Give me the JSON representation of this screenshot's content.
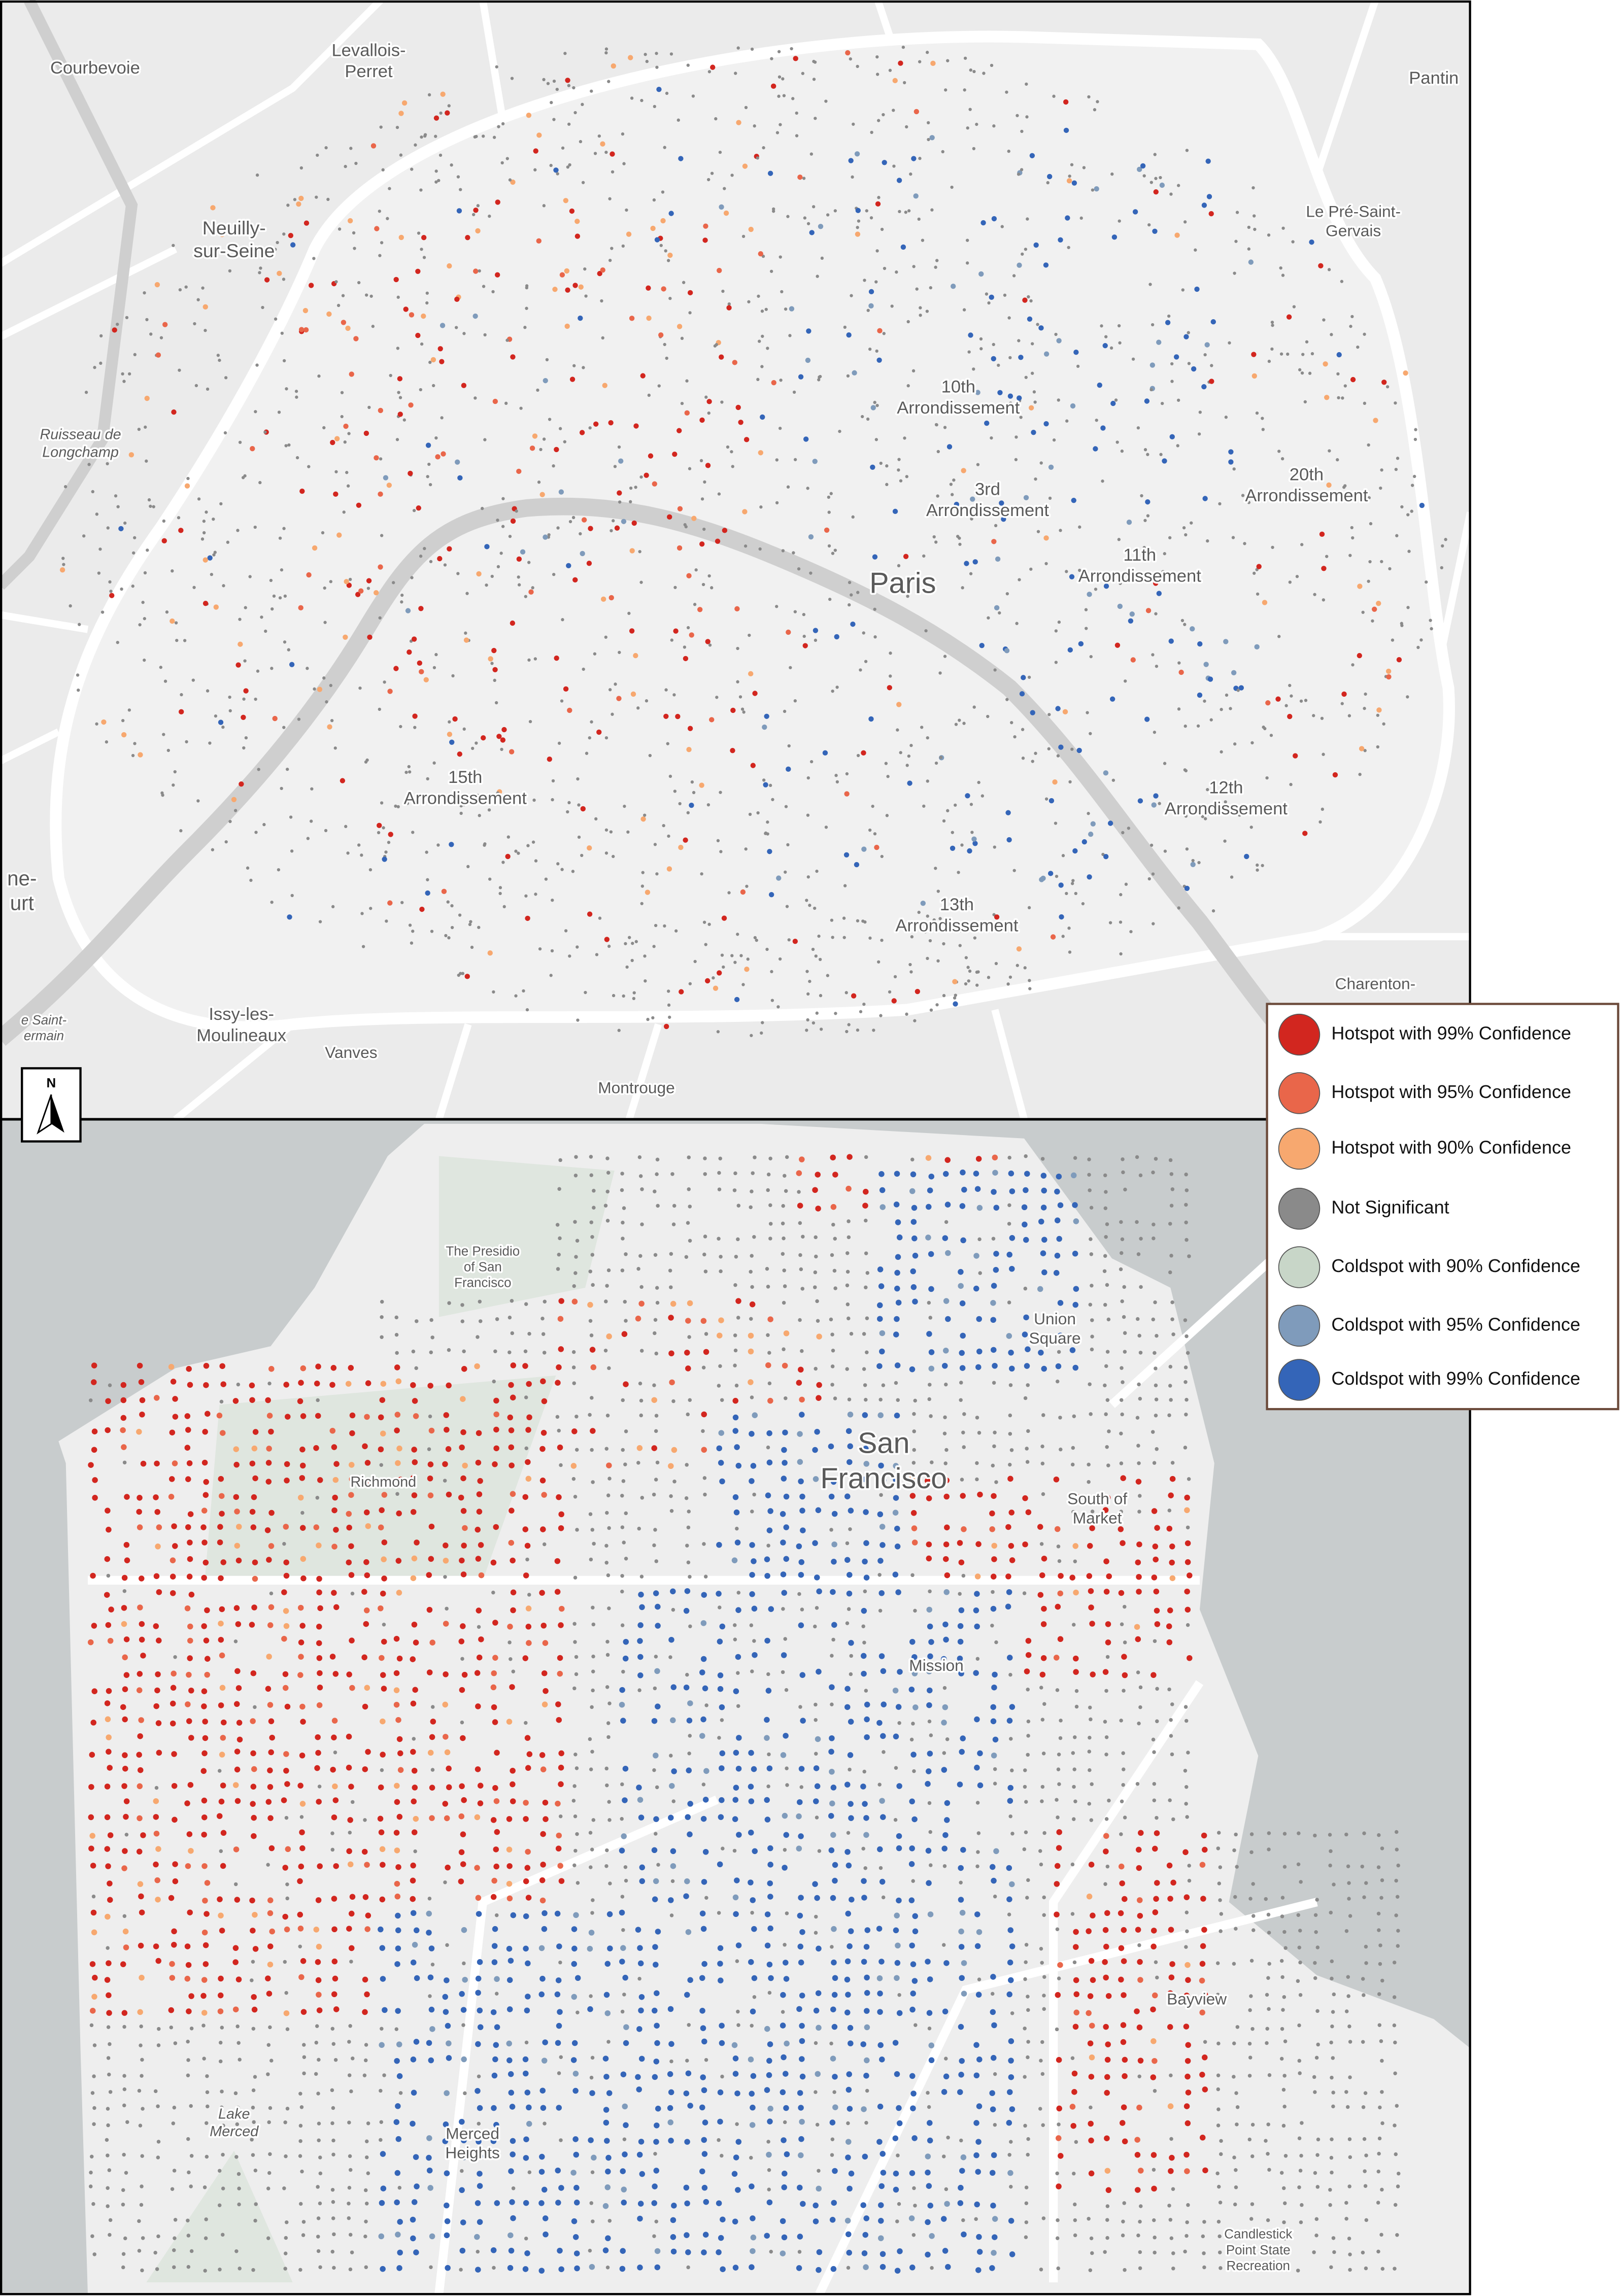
{
  "paris_map": {
    "labels": [
      {
        "lines": [
          "Courbevoie"
        ]
      },
      {
        "lines": [
          "Levallois-",
          "Perret"
        ]
      },
      {
        "lines": [
          "Pantin"
        ]
      },
      {
        "lines": [
          "Neuilly-",
          "sur-Seine"
        ]
      },
      {
        "lines": [
          "Le Pré-Saint-",
          "Gervais"
        ]
      },
      {
        "lines": [
          "Ruisseau de",
          "Longchamp"
        ]
      },
      {
        "lines": [
          "10th",
          "Arrondissement"
        ]
      },
      {
        "lines": [
          "3rd",
          "Arrondissement"
        ]
      },
      {
        "lines": [
          "20th",
          "Arrondissement"
        ]
      },
      {
        "lines": [
          "Paris"
        ]
      },
      {
        "lines": [
          "11th",
          "Arrondissement"
        ]
      },
      {
        "lines": [
          "15th",
          "Arrondissement"
        ]
      },
      {
        "lines": [
          "12th",
          "Arrondissement"
        ]
      },
      {
        "lines": [
          "13th",
          "Arrondissement"
        ]
      },
      {
        "lines": [
          "ne-",
          "urt"
        ]
      },
      {
        "lines": [
          "Charenton-"
        ]
      },
      {
        "lines": [
          "Issy-les-",
          "Moulineaux"
        ]
      },
      {
        "lines": [
          "Vanves"
        ]
      },
      {
        "lines": [
          "Montrouge"
        ]
      },
      {
        "lines": [
          "e Saint-",
          "ermain"
        ]
      }
    ]
  },
  "sf_map": {
    "labels": [
      {
        "lines": [
          "The Presidio",
          "of San",
          "Francisco"
        ]
      },
      {
        "lines": [
          "Richmond"
        ]
      },
      {
        "lines": [
          "San",
          "Francisco"
        ]
      },
      {
        "lines": [
          "Union",
          "Square"
        ]
      },
      {
        "lines": [
          "South of",
          "Market"
        ]
      },
      {
        "lines": [
          "Mission"
        ]
      },
      {
        "lines": [
          "Bayview"
        ]
      },
      {
        "lines": [
          "Lake",
          "Merced"
        ]
      },
      {
        "lines": [
          "Merced",
          "Heights"
        ]
      },
      {
        "lines": [
          "Candlestick",
          "Point State",
          "Recreation"
        ]
      }
    ]
  },
  "north_arrow": "N",
  "legend": {
    "items": [
      {
        "label": "Hotspot with 99% Confidence",
        "color": "#d2261f"
      },
      {
        "label": "Hotspot with 95% Confidence",
        "color": "#e9664a"
      },
      {
        "label": "Hotspot with 90% Confidence",
        "color": "#f7a86f"
      },
      {
        "label": "Not Significant",
        "color": "#8a8a8a"
      },
      {
        "label": "Coldspot with 90% Confidence",
        "color": "#c8d6c8"
      },
      {
        "label": "Coldspot with 95% Confidence",
        "color": "#7f9bbb"
      },
      {
        "label": "Coldspot with 99% Confidence",
        "color": "#3465b8"
      }
    ]
  }
}
